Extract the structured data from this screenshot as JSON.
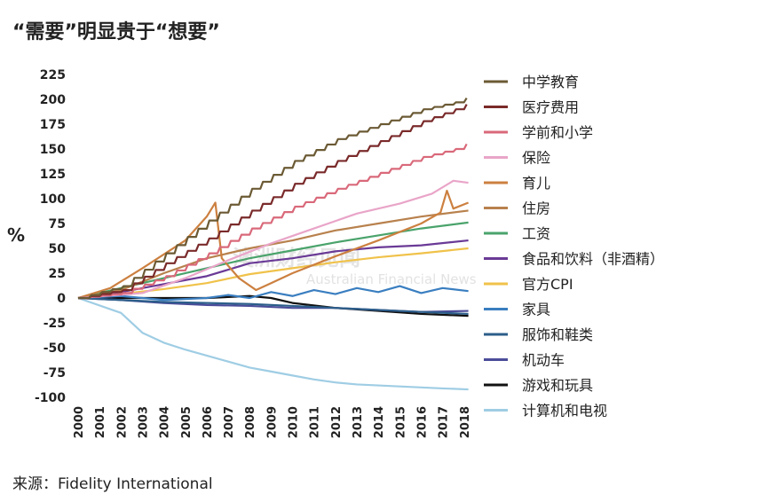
{
  "title": "“需要”明显贵于“想要”",
  "source": "来源：Fidelity International",
  "watermark": {
    "cn": "澳洲财经见闻",
    "en": "Australian Financial News"
  },
  "chart_data": {
    "type": "line",
    "ylabel": "%",
    "ylim": [
      -100,
      225
    ],
    "yticks": [
      225,
      200,
      175,
      150,
      125,
      100,
      75,
      50,
      25,
      0,
      -25,
      -50,
      -75,
      -100
    ],
    "ytick_labels": [
      "225",
      "200",
      "175",
      "150",
      "125",
      "100",
      "75",
      "50",
      "25",
      "0",
      "-25",
      "-50",
      "-75",
      "-100"
    ],
    "xlim": [
      2000,
      2018.3
    ],
    "xticks": [
      "2000",
      "2001",
      "2002",
      "2003",
      "2004",
      "2005",
      "2006",
      "2007",
      "2008",
      "2009",
      "2010",
      "2011",
      "2012",
      "2013",
      "2014",
      "2015",
      "2016",
      "2017",
      "2018"
    ],
    "legend_position": "right",
    "series": [
      {
        "name": "中学教育",
        "color": "#6b5a34",
        "stair": true,
        "points": [
          [
            2000,
            0
          ],
          [
            2002,
            12
          ],
          [
            2004,
            45
          ],
          [
            2006,
            78
          ],
          [
            2008,
            110
          ],
          [
            2010,
            138
          ],
          [
            2012,
            160
          ],
          [
            2014,
            175
          ],
          [
            2016,
            190
          ],
          [
            2017.5,
            197
          ],
          [
            2018.2,
            203
          ]
        ]
      },
      {
        "name": "医疗费用",
        "color": "#7a2a2a",
        "stair": true,
        "points": [
          [
            2000,
            0
          ],
          [
            2002,
            8
          ],
          [
            2004,
            35
          ],
          [
            2006,
            60
          ],
          [
            2008,
            88
          ],
          [
            2010,
            115
          ],
          [
            2012,
            138
          ],
          [
            2014,
            158
          ],
          [
            2016,
            178
          ],
          [
            2017.5,
            190
          ],
          [
            2018.2,
            197
          ]
        ]
      },
      {
        "name": "学前和小学",
        "color": "#d9697a",
        "stair": true,
        "points": [
          [
            2000,
            0
          ],
          [
            2002,
            5
          ],
          [
            2004,
            22
          ],
          [
            2006,
            45
          ],
          [
            2008,
            70
          ],
          [
            2010,
            92
          ],
          [
            2012,
            110
          ],
          [
            2014,
            126
          ],
          [
            2016,
            142
          ],
          [
            2017.5,
            150
          ],
          [
            2018.2,
            157
          ]
        ]
      },
      {
        "name": "保险",
        "color": "#e9a5c8",
        "points": [
          [
            2000,
            0
          ],
          [
            2003,
            5
          ],
          [
            2005,
            20
          ],
          [
            2007,
            38
          ],
          [
            2009,
            55
          ],
          [
            2011,
            70
          ],
          [
            2013,
            85
          ],
          [
            2015,
            95
          ],
          [
            2016.5,
            105
          ],
          [
            2017.5,
            118
          ],
          [
            2018.2,
            116
          ]
        ]
      },
      {
        "name": "育儿",
        "color": "#cc8040",
        "points": [
          [
            2000,
            0
          ],
          [
            2001.5,
            10
          ],
          [
            2003,
            30
          ],
          [
            2005,
            58
          ],
          [
            2006,
            82
          ],
          [
            2006.4,
            96
          ],
          [
            2006.7,
            40
          ],
          [
            2007.5,
            20
          ],
          [
            2008.3,
            8
          ],
          [
            2009,
            15
          ],
          [
            2010,
            25
          ],
          [
            2012,
            42
          ],
          [
            2014,
            58
          ],
          [
            2016,
            75
          ],
          [
            2016.9,
            86
          ],
          [
            2017.2,
            108
          ],
          [
            2017.5,
            90
          ],
          [
            2018.2,
            96
          ]
        ]
      },
      {
        "name": "住房",
        "color": "#b8814d",
        "points": [
          [
            2000,
            0
          ],
          [
            2002,
            8
          ],
          [
            2004,
            25
          ],
          [
            2006,
            40
          ],
          [
            2008,
            50
          ],
          [
            2010,
            58
          ],
          [
            2012,
            68
          ],
          [
            2014,
            75
          ],
          [
            2016,
            82
          ],
          [
            2018.2,
            88
          ]
        ]
      },
      {
        "name": "工资",
        "color": "#4aa36b",
        "points": [
          [
            2000,
            0
          ],
          [
            2002,
            10
          ],
          [
            2004,
            20
          ],
          [
            2006,
            30
          ],
          [
            2008,
            40
          ],
          [
            2010,
            48
          ],
          [
            2012,
            56
          ],
          [
            2014,
            63
          ],
          [
            2016,
            70
          ],
          [
            2018.2,
            76
          ]
        ]
      },
      {
        "name": "食品和饮料（非酒精）",
        "color": "#6a3a96",
        "points": [
          [
            2000,
            0
          ],
          [
            2002,
            6
          ],
          [
            2004,
            14
          ],
          [
            2006,
            22
          ],
          [
            2008,
            35
          ],
          [
            2010,
            40
          ],
          [
            2012,
            47
          ],
          [
            2014,
            51
          ],
          [
            2016,
            53
          ],
          [
            2018.2,
            58
          ]
        ]
      },
      {
        "name": "官方CPI",
        "color": "#f0c24a",
        "points": [
          [
            2000,
            0
          ],
          [
            2002,
            4
          ],
          [
            2004,
            9
          ],
          [
            2006,
            15
          ],
          [
            2008,
            24
          ],
          [
            2010,
            30
          ],
          [
            2012,
            36
          ],
          [
            2014,
            41
          ],
          [
            2016,
            45
          ],
          [
            2018.2,
            50
          ]
        ]
      },
      {
        "name": "家具",
        "color": "#3a7ec0",
        "points": [
          [
            2000,
            0
          ],
          [
            2002,
            2
          ],
          [
            2004,
            -2
          ],
          [
            2006,
            0
          ],
          [
            2007,
            3
          ],
          [
            2008,
            0
          ],
          [
            2009,
            6
          ],
          [
            2010,
            2
          ],
          [
            2011,
            8
          ],
          [
            2012,
            4
          ],
          [
            2013,
            10
          ],
          [
            2014,
            6
          ],
          [
            2015,
            12
          ],
          [
            2016,
            5
          ],
          [
            2017,
            10
          ],
          [
            2018.2,
            7
          ]
        ]
      },
      {
        "name": "服饰和鞋类",
        "color": "#2c5e8a",
        "points": [
          [
            2000,
            0
          ],
          [
            2002,
            -2
          ],
          [
            2004,
            -4
          ],
          [
            2006,
            -5
          ],
          [
            2008,
            -6
          ],
          [
            2010,
            -8
          ],
          [
            2012,
            -10
          ],
          [
            2014,
            -12
          ],
          [
            2016,
            -14
          ],
          [
            2018.2,
            -16
          ]
        ]
      },
      {
        "name": "机动车",
        "color": "#4b4c99",
        "points": [
          [
            2000,
            0
          ],
          [
            2002,
            -2
          ],
          [
            2004,
            -5
          ],
          [
            2006,
            -7
          ],
          [
            2008,
            -8
          ],
          [
            2010,
            -10
          ],
          [
            2012,
            -10
          ],
          [
            2014,
            -12
          ],
          [
            2016,
            -14
          ],
          [
            2018.2,
            -13
          ]
        ]
      },
      {
        "name": "游戏和玩具",
        "color": "#111111",
        "points": [
          [
            2000,
            0
          ],
          [
            2002,
            0
          ],
          [
            2004,
            0
          ],
          [
            2006,
            0
          ],
          [
            2008,
            2
          ],
          [
            2009,
            0
          ],
          [
            2010,
            -5
          ],
          [
            2012,
            -10
          ],
          [
            2014,
            -13
          ],
          [
            2016,
            -16
          ],
          [
            2018.2,
            -18
          ]
        ]
      },
      {
        "name": "计算机和电视",
        "color": "#9fcde4",
        "points": [
          [
            2000,
            0
          ],
          [
            2002,
            -15
          ],
          [
            2003,
            -35
          ],
          [
            2004,
            -45
          ],
          [
            2005,
            -52
          ],
          [
            2006,
            -58
          ],
          [
            2007,
            -64
          ],
          [
            2008,
            -70
          ],
          [
            2009,
            -74
          ],
          [
            2010,
            -78
          ],
          [
            2011,
            -82
          ],
          [
            2012,
            -85
          ],
          [
            2013,
            -87
          ],
          [
            2014,
            -88
          ],
          [
            2015,
            -89
          ],
          [
            2016,
            -90
          ],
          [
            2017,
            -91
          ],
          [
            2018.2,
            -92
          ]
        ]
      }
    ]
  }
}
